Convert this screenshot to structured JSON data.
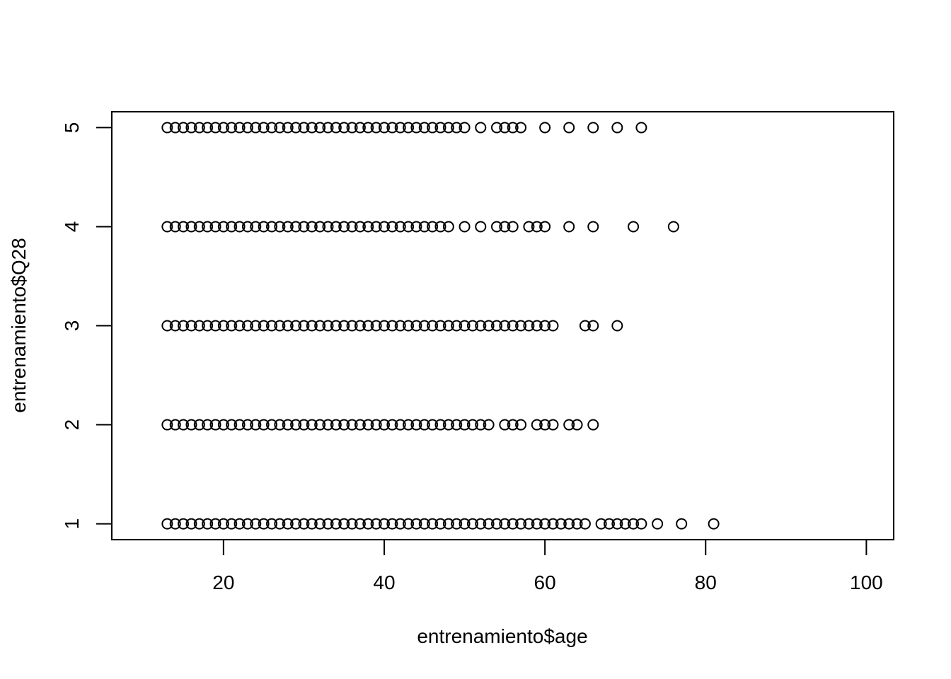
{
  "chart_data": {
    "type": "scatter",
    "xlabel": "entrenamiento$age",
    "ylabel": "entrenamiento$Q28",
    "xlim": [
      6.1,
      103.4
    ],
    "ylim": [
      0.84,
      5.16
    ],
    "xticks": [
      "20",
      "40",
      "60",
      "80",
      "100"
    ],
    "yticks": [
      "1",
      "2",
      "3",
      "4",
      "5"
    ],
    "grid": false,
    "marker": "open-circle",
    "series": [
      {
        "y": 1,
        "x": [
          13,
          14,
          15,
          16,
          17,
          18,
          19,
          20,
          21,
          22,
          23,
          24,
          25,
          26,
          27,
          28,
          29,
          30,
          31,
          32,
          33,
          34,
          35,
          36,
          37,
          38,
          39,
          40,
          41,
          42,
          43,
          44,
          45,
          46,
          47,
          48,
          49,
          50,
          51,
          52,
          53,
          54,
          55,
          56,
          57,
          58,
          59,
          60,
          61,
          62,
          63,
          64,
          65,
          67,
          68,
          69,
          70,
          71,
          72,
          74,
          77,
          81
        ]
      },
      {
        "y": 2,
        "x": [
          13,
          14,
          15,
          16,
          17,
          18,
          19,
          20,
          21,
          22,
          23,
          24,
          25,
          26,
          27,
          28,
          29,
          30,
          31,
          32,
          33,
          34,
          35,
          36,
          37,
          38,
          39,
          40,
          41,
          42,
          43,
          44,
          45,
          46,
          47,
          48,
          49,
          50,
          51,
          52,
          53,
          55,
          56,
          57,
          59,
          60,
          61,
          63,
          64,
          66
        ]
      },
      {
        "y": 3,
        "x": [
          13,
          14,
          15,
          16,
          17,
          18,
          19,
          20,
          21,
          22,
          23,
          24,
          25,
          26,
          27,
          28,
          29,
          30,
          31,
          32,
          33,
          34,
          35,
          36,
          37,
          38,
          39,
          40,
          41,
          42,
          43,
          44,
          45,
          46,
          47,
          48,
          49,
          50,
          51,
          52,
          53,
          54,
          55,
          56,
          57,
          58,
          59,
          60,
          61,
          65,
          66,
          69
        ]
      },
      {
        "y": 4,
        "x": [
          13,
          14,
          15,
          16,
          17,
          18,
          19,
          20,
          21,
          22,
          23,
          24,
          25,
          26,
          27,
          28,
          29,
          30,
          31,
          32,
          33,
          34,
          35,
          36,
          37,
          38,
          39,
          40,
          41,
          42,
          43,
          44,
          45,
          46,
          47,
          48,
          50,
          52,
          54,
          55,
          56,
          58,
          59,
          60,
          63,
          66,
          71,
          76
        ]
      },
      {
        "y": 5,
        "x": [
          13,
          14,
          15,
          16,
          17,
          18,
          19,
          20,
          21,
          22,
          23,
          24,
          25,
          26,
          27,
          28,
          29,
          30,
          31,
          32,
          33,
          34,
          35,
          36,
          37,
          38,
          39,
          40,
          41,
          42,
          43,
          44,
          45,
          46,
          47,
          48,
          49,
          50,
          52,
          54,
          55,
          56,
          57,
          60,
          63,
          66,
          69,
          72
        ]
      }
    ]
  }
}
